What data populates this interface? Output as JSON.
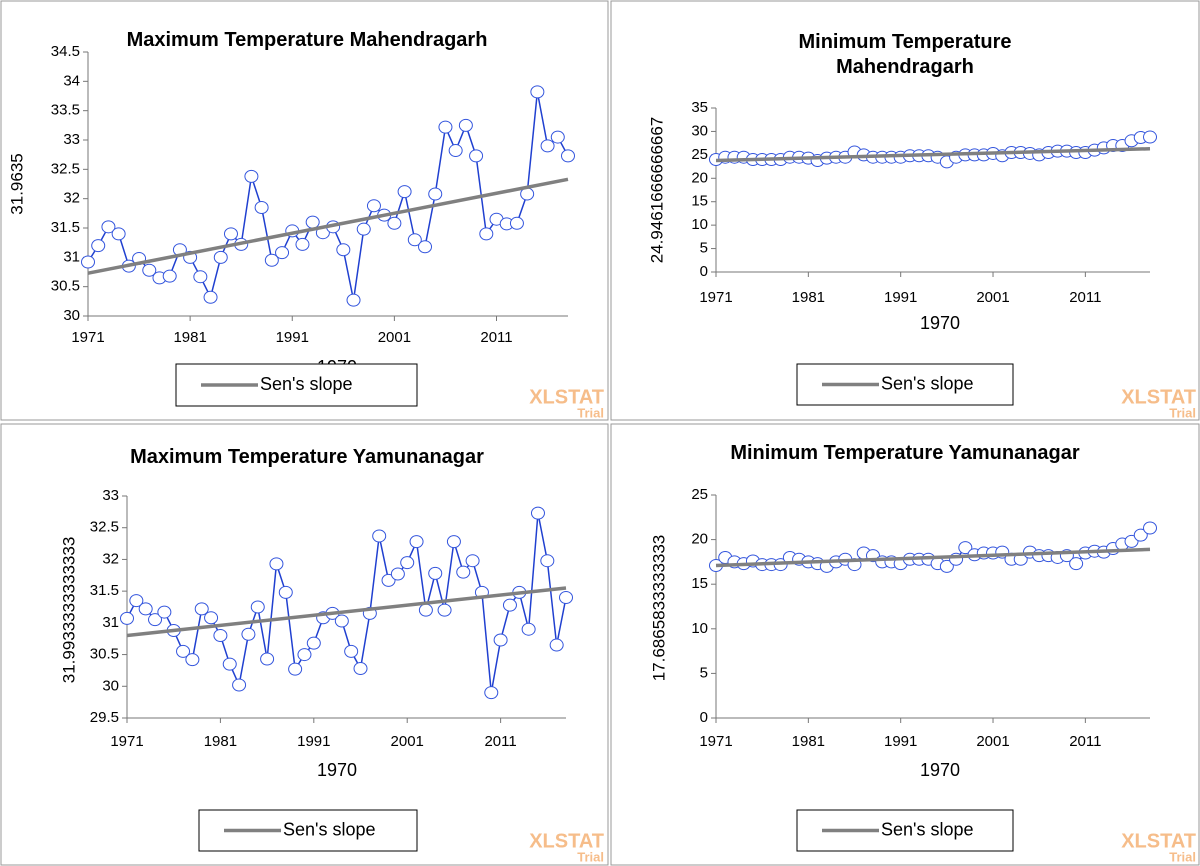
{
  "chart_data": [
    {
      "type": "line",
      "title": "Maximum Temperature Mahendragarh",
      "x_label": "1970",
      "y_label": "31.9635",
      "x": [
        1971,
        1972,
        1973,
        1974,
        1975,
        1976,
        1977,
        1978,
        1979,
        1980,
        1981,
        1982,
        1983,
        1984,
        1985,
        1986,
        1987,
        1988,
        1989,
        1990,
        1991,
        1992,
        1993,
        1994,
        1995,
        1996,
        1997,
        1998,
        1999,
        2000,
        2001,
        2002,
        2003,
        2004,
        2005,
        2006,
        2007,
        2008,
        2009,
        2010,
        2011,
        2012,
        2013,
        2014,
        2015,
        2016,
        2017,
        2018
      ],
      "xlim": [
        1971,
        2018
      ],
      "xticks": [
        1971,
        1981,
        1991,
        2001,
        2011
      ],
      "ylim": [
        30,
        34.5
      ],
      "yticks": [
        30,
        30.5,
        31,
        31.5,
        32,
        32.5,
        33,
        33.5,
        34,
        34.5
      ],
      "series": [
        {
          "color": "#2040d0",
          "values": [
            30.92,
            31.2,
            31.52,
            31.4,
            30.85,
            30.98,
            30.78,
            30.65,
            30.68,
            31.13,
            31.0,
            30.67,
            30.32,
            31.0,
            31.4,
            31.22,
            32.38,
            31.85,
            30.95,
            31.08,
            31.45,
            31.22,
            31.6,
            31.42,
            31.52,
            31.13,
            30.27,
            31.48,
            31.88,
            31.72,
            31.58,
            32.12,
            31.3,
            31.18,
            32.08,
            33.22,
            32.82,
            33.25,
            32.73,
            31.4,
            31.65,
            31.57,
            31.58,
            32.08,
            33.82,
            32.9,
            33.05,
            32.73
          ]
        },
        {
          "name": "Sen's slope",
          "color": "#808080",
          "x": [
            1971,
            2018
          ],
          "values": [
            30.73,
            32.33
          ]
        }
      ],
      "watermark": "XLSTAT",
      "watermark_sub": "Trial"
    },
    {
      "type": "line",
      "title": "Minimum Temperature Mahendragarh",
      "x_label": "1970",
      "y_label": "24.9461666666667",
      "x": [
        1971,
        1972,
        1973,
        1974,
        1975,
        1976,
        1977,
        1978,
        1979,
        1980,
        1981,
        1982,
        1983,
        1984,
        1985,
        1986,
        1987,
        1988,
        1989,
        1990,
        1991,
        1992,
        1993,
        1994,
        1995,
        1996,
        1997,
        1998,
        1999,
        2000,
        2001,
        2002,
        2003,
        2004,
        2005,
        2006,
        2007,
        2008,
        2009,
        2010,
        2011,
        2012,
        2013,
        2014,
        2015,
        2016,
        2017,
        2018
      ],
      "xlim": [
        1971,
        2018
      ],
      "xticks": [
        1971,
        1981,
        1991,
        2001,
        2011
      ],
      "ylim": [
        0,
        35
      ],
      "yticks": [
        0,
        5,
        10,
        15,
        20,
        25,
        30,
        35
      ],
      "series": [
        {
          "color": "#2040d0",
          "values": [
            24,
            24.5,
            24.5,
            24.5,
            24,
            24,
            24,
            24,
            24.5,
            24.5,
            24.3,
            23.8,
            24.3,
            24.5,
            24.5,
            25.6,
            25,
            24.5,
            24.5,
            24.5,
            24.5,
            24.8,
            24.8,
            24.8,
            24.5,
            23.5,
            24.5,
            25,
            25,
            25,
            25.3,
            24.8,
            25.5,
            25.5,
            25.3,
            25,
            25.5,
            25.8,
            25.8,
            25.5,
            25.5,
            26,
            26.5,
            27,
            27,
            28,
            28.7,
            28.8
          ]
        },
        {
          "name": "Sen's slope",
          "color": "#808080",
          "x": [
            1971,
            2018
          ],
          "values": [
            23.8,
            26.3
          ]
        }
      ],
      "watermark": "XLSTAT",
      "watermark_sub": "Trial"
    },
    {
      "type": "line",
      "title": "Maximum Temperature Yamunanagar",
      "x_label": "1970",
      "y_label": "31.9933333333333",
      "x": [
        1971,
        1972,
        1973,
        1974,
        1975,
        1976,
        1977,
        1978,
        1979,
        1980,
        1981,
        1982,
        1983,
        1984,
        1985,
        1986,
        1987,
        1988,
        1989,
        1990,
        1991,
        1992,
        1993,
        1994,
        1995,
        1996,
        1997,
        1998,
        1999,
        2000,
        2001,
        2002,
        2003,
        2004,
        2005,
        2006,
        2007,
        2008,
        2009,
        2010,
        2011,
        2012,
        2013,
        2014,
        2015,
        2016,
        2017,
        2018
      ],
      "xlim": [
        1971,
        2018
      ],
      "xticks": [
        1971,
        1981,
        1991,
        2001,
        2011
      ],
      "ylim": [
        29.5,
        33
      ],
      "yticks": [
        29.5,
        30,
        30.5,
        31,
        31.5,
        32,
        32.5,
        33
      ],
      "series": [
        {
          "color": "#2040d0",
          "values": [
            31.07,
            31.35,
            31.22,
            31.05,
            31.17,
            30.88,
            30.55,
            30.42,
            31.22,
            31.08,
            30.8,
            30.35,
            30.02,
            30.82,
            31.25,
            30.43,
            31.93,
            31.48,
            30.27,
            30.5,
            30.68,
            31.08,
            31.15,
            31.03,
            30.55,
            30.28,
            31.15,
            32.37,
            31.67,
            31.77,
            31.95,
            32.28,
            31.2,
            31.78,
            31.2,
            32.28,
            31.8,
            31.98,
            31.48,
            29.9,
            30.73,
            31.28,
            31.48,
            30.9,
            32.73,
            31.98,
            30.65,
            31.4
          ]
        },
        {
          "name": "Sen's slope",
          "color": "#808080",
          "x": [
            1971,
            2018
          ],
          "values": [
            30.8,
            31.55
          ]
        }
      ],
      "watermark": "XLSTAT",
      "watermark_sub": "Trial"
    },
    {
      "type": "line",
      "title": "Minimum Temperature Yamunanagar",
      "x_label": "1970",
      "y_label": "17.6865833333333",
      "x": [
        1971,
        1972,
        1973,
        1974,
        1975,
        1976,
        1977,
        1978,
        1979,
        1980,
        1981,
        1982,
        1983,
        1984,
        1985,
        1986,
        1987,
        1988,
        1989,
        1990,
        1991,
        1992,
        1993,
        1994,
        1995,
        1996,
        1997,
        1998,
        1999,
        2000,
        2001,
        2002,
        2003,
        2004,
        2005,
        2006,
        2007,
        2008,
        2009,
        2010,
        2011,
        2012,
        2013,
        2014,
        2015,
        2016,
        2017,
        2018
      ],
      "xlim": [
        1971,
        2018
      ],
      "xticks": [
        1971,
        1981,
        1991,
        2001,
        2011
      ],
      "ylim": [
        0,
        25
      ],
      "yticks": [
        0,
        5,
        10,
        15,
        20,
        25
      ],
      "series": [
        {
          "color": "#2040d0",
          "values": [
            17.1,
            18,
            17.5,
            17.3,
            17.6,
            17.2,
            17.2,
            17.2,
            18,
            17.8,
            17.5,
            17.3,
            17,
            17.5,
            17.8,
            17.2,
            18.5,
            18.2,
            17.5,
            17.5,
            17.3,
            17.8,
            17.8,
            17.8,
            17.3,
            17,
            17.8,
            19.1,
            18.3,
            18.5,
            18.5,
            18.6,
            17.8,
            17.8,
            18.6,
            18.2,
            18.2,
            18,
            18.2,
            17.3,
            18.5,
            18.7,
            18.6,
            19,
            19.5,
            19.8,
            20.5,
            21.3
          ]
        },
        {
          "name": "Sen's slope",
          "color": "#808080",
          "x": [
            1971,
            2018
          ],
          "values": [
            17.1,
            18.9
          ]
        }
      ],
      "watermark": "XLSTAT",
      "watermark_sub": "Trial"
    }
  ]
}
